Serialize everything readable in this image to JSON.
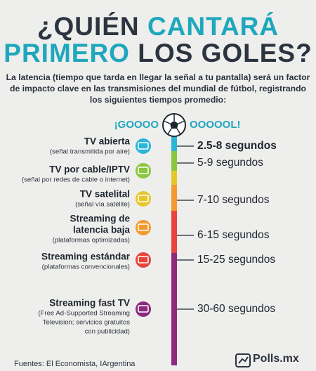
{
  "title": {
    "line1": [
      "¿QUIÉN",
      "CANTARÁ"
    ],
    "line2": [
      "PRIMERO",
      "LOS GOLES?"
    ]
  },
  "intro": [
    "La latencia (tiempo que tarda en llegar la señal a tu pantalla) será un factor",
    "de impacto clave en las transmisiones del mundial de fútbol, registrando",
    "los siguientes tiempos promedio:"
  ],
  "gol": [
    "¡GOOOO",
    "OOOOOL!"
  ],
  "items": [
    {
      "name": [
        "TV abierta"
      ],
      "note": [
        "(señal transmitida por aire)"
      ],
      "time": "2.5-8 segundos"
    },
    {
      "name": [
        "TV por cable/IPTV"
      ],
      "note": [
        "(señal por redes de cable o internet)"
      ],
      "time": "5-9 segundos"
    },
    {
      "name": [
        "TV satelital"
      ],
      "note": [
        "(señal vía satélite)"
      ],
      "time": "7-10 segundos"
    },
    {
      "name": [
        "Streaming de",
        "latencia baja"
      ],
      "note": [
        "(plataformas optimizadas)"
      ],
      "time": "6-15 segundos"
    },
    {
      "name": [
        "Streaming estándar"
      ],
      "note": [
        "(plataformas convencionales)"
      ],
      "time": "15-25 segundos"
    },
    {
      "name": [
        "Streaming fast TV"
      ],
      "note": [
        "(Free Ad-Supported Streaming",
        "Television; servicios gratuitos",
        "con publicidad)"
      ],
      "time": "30-60 segundos"
    }
  ],
  "footer": {
    "sources": "Fuentes: El Economista, IArgentina",
    "brand": "Polls.mx"
  }
}
